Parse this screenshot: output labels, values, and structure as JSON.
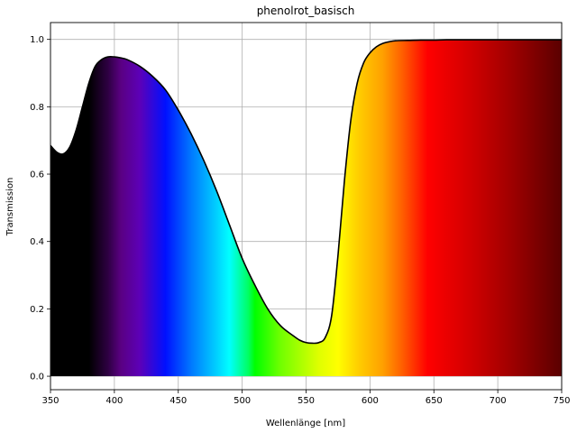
{
  "chart_data": {
    "type": "area",
    "title": "phenolrot_basisch",
    "xlabel": "Wellenlänge [nm]",
    "ylabel": "Transmission",
    "xlim": [
      350,
      750
    ],
    "ylim": [
      -0.04,
      1.05
    ],
    "xticks": [
      350,
      400,
      450,
      500,
      550,
      600,
      650,
      700,
      750
    ],
    "yticks": [
      0.0,
      0.2,
      0.4,
      0.6,
      0.8,
      1.0
    ],
    "xtick_labels": [
      "350",
      "400",
      "450",
      "500",
      "550",
      "600",
      "650",
      "700",
      "750"
    ],
    "ytick_labels": [
      "0.0",
      "0.2",
      "0.4",
      "0.6",
      "0.8",
      "1.0"
    ],
    "grid": true,
    "fill": "visible-spectrum-gradient",
    "line_color": "#000000",
    "series": [
      {
        "x": [
          350,
          355,
          360,
          365,
          370,
          375,
          380,
          385,
          390,
          395,
          400,
          405,
          410,
          420,
          430,
          440,
          450,
          460,
          470,
          480,
          490,
          500,
          510,
          520,
          530,
          540,
          545,
          550,
          555,
          560,
          565,
          570,
          575,
          580,
          585,
          590,
          595,
          600,
          605,
          610,
          615,
          620,
          630,
          640,
          650,
          660,
          680,
          700,
          720,
          750
        ],
        "y": [
          0.685,
          0.665,
          0.66,
          0.68,
          0.73,
          0.8,
          0.87,
          0.92,
          0.94,
          0.948,
          0.948,
          0.945,
          0.94,
          0.92,
          0.89,
          0.85,
          0.79,
          0.72,
          0.64,
          0.55,
          0.45,
          0.35,
          0.27,
          0.2,
          0.15,
          0.12,
          0.107,
          0.1,
          0.098,
          0.1,
          0.115,
          0.18,
          0.36,
          0.58,
          0.76,
          0.87,
          0.93,
          0.96,
          0.978,
          0.988,
          0.993,
          0.996,
          0.997,
          0.998,
          0.998,
          0.999,
          0.999,
          0.999,
          0.999,
          0.999
        ]
      }
    ]
  }
}
